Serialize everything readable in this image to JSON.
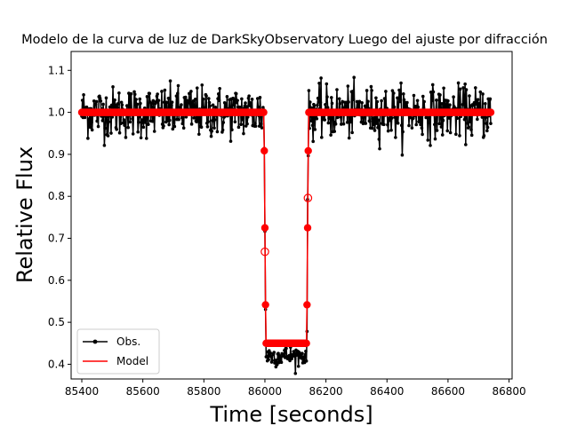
{
  "chart_data": {
    "type": "line",
    "title": "Modelo de la curva de luz de DarkSkyObservatory Luego del ajuste por difracción",
    "xlabel": "Time [seconds]",
    "ylabel": "Relative Flux",
    "xlim": [
      85365,
      86810
    ],
    "ylim": [
      0.365,
      1.145
    ],
    "xticks": [
      85400,
      85600,
      85800,
      86000,
      86200,
      86400,
      86600,
      86800
    ],
    "yticks": [
      0.4,
      0.5,
      0.6,
      0.7,
      0.8,
      0.9,
      1.0,
      1.1
    ],
    "xtick_labels": [
      "85400",
      "85600",
      "85800",
      "86000",
      "86200",
      "86400",
      "86600",
      "86800"
    ],
    "ytick_labels": [
      "0.4",
      "0.5",
      "0.6",
      "0.7",
      "0.8",
      "0.9",
      "1.0",
      "1.1"
    ],
    "grid": false,
    "legend_position": "lower left",
    "x_range": [
      85400,
      86740
    ],
    "x_step": 2,
    "occultation": {
      "baseline": 1.0,
      "bottom": 0.45,
      "ingress_start": 85997,
      "ingress_end": 86003,
      "egress_start": 86137,
      "egress_end": 86143,
      "bottom_noise_mean": 0.42,
      "baseline_noise_sd": 0.03,
      "bottom_noise_sd": 0.012
    },
    "model_points_highlighted": [
      {
        "x": 86000,
        "y": 0.668
      },
      {
        "x": 86141,
        "y": 0.796
      }
    ],
    "series": [
      {
        "name": "Obs.",
        "color": "#000000",
        "style": "line-with-dots"
      },
      {
        "name": "Model",
        "color": "#ff0000",
        "style": "line-with-open-circles"
      }
    ]
  }
}
